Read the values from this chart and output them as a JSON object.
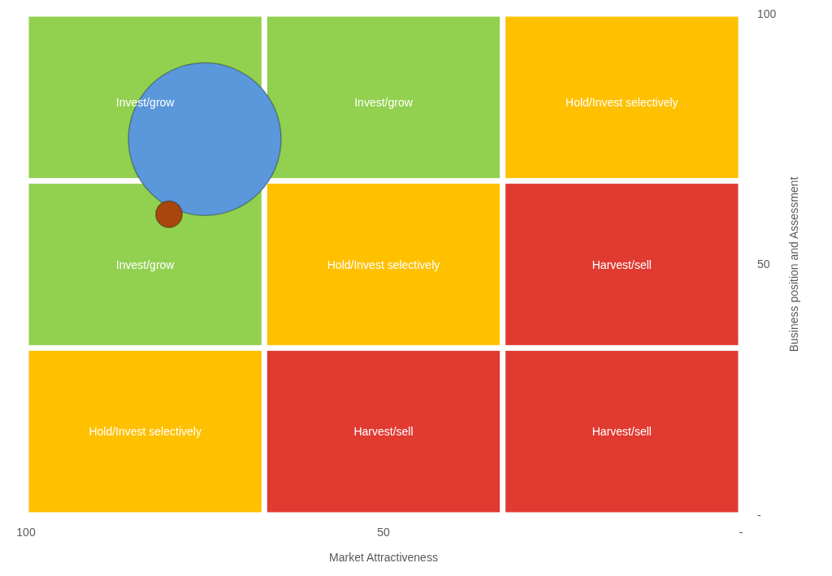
{
  "chart_data": {
    "type": "bubble",
    "xlabel": "Market Attractiveness",
    "ylabel": "Business position and Assessment",
    "x": [
      75,
      80
    ],
    "values": [
      75,
      60
    ],
    "sizes": [
      1,
      0.03
    ],
    "colors": [
      "#5a97db",
      "#a9460e"
    ],
    "xlim": [
      100,
      0
    ],
    "xticks": [
      100,
      50,
      {
        "value": 0,
        "label": "-"
      }
    ],
    "ylim": [
      0,
      100
    ],
    "yticks": [
      {
        "value": 0,
        "label": "-"
      },
      50,
      100
    ],
    "annotations": [
      "Invest/grow",
      "Invest/grow",
      "Hold/Invest selectively",
      "Invest/grow",
      "Hold/Invest selectively",
      "Harvest/sell",
      "Hold/Invest selectively",
      "Harvest/sell",
      "Harvest/sell"
    ]
  }
}
